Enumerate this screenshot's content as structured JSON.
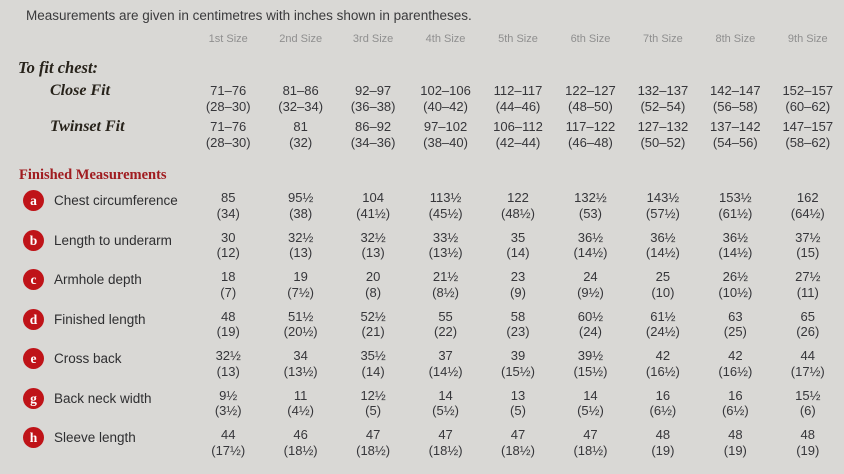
{
  "title": "Measurements are given in centimetres with inches shown in parentheses.",
  "size_headers": [
    "1st Size",
    "2nd Size",
    "3rd Size",
    "4th Size",
    "5th Size",
    "6th Size",
    "7th Size",
    "8th Size",
    "9th Size"
  ],
  "fit_section": {
    "heading": "To fit chest:",
    "rows": [
      {
        "label": "Close Fit",
        "cm": [
          "71–76",
          "81–86",
          "92–97",
          "102–106",
          "112–117",
          "122–127",
          "132–137",
          "142–147",
          "152–157"
        ],
        "inches": [
          "(28–30)",
          "(32–34)",
          "(36–38)",
          "(40–42)",
          "(44–46)",
          "(48–50)",
          "(52–54)",
          "(56–58)",
          "(60–62)"
        ]
      },
      {
        "label": "Twinset Fit",
        "cm": [
          "71–76",
          "81",
          "86–92",
          "97–102",
          "106–112",
          "117–122",
          "127–132",
          "137–142",
          "147–157"
        ],
        "inches": [
          "(28–30)",
          "(32)",
          "(34–36)",
          "(38–40)",
          "(42–44)",
          "(46–48)",
          "(50–52)",
          "(54–56)",
          "(58–62)"
        ]
      }
    ]
  },
  "measurements_section": {
    "heading": "Finished Measurements",
    "rows": [
      {
        "letter": "a",
        "label": "Chest circumference",
        "cm": [
          "85",
          "95½",
          "104",
          "113½",
          "122",
          "132½",
          "143½",
          "153½",
          "162"
        ],
        "inches": [
          "(34)",
          "(38)",
          "(41½)",
          "(45½)",
          "(48½)",
          "(53)",
          "(57½)",
          "(61½)",
          "(64½)"
        ]
      },
      {
        "letter": "b",
        "label": "Length to underarm",
        "cm": [
          "30",
          "32½",
          "32½",
          "33½",
          "35",
          "36½",
          "36½",
          "36½",
          "37½"
        ],
        "inches": [
          "(12)",
          "(13)",
          "(13)",
          "(13½)",
          "(14)",
          "(14½)",
          "(14½)",
          "(14½)",
          "(15)"
        ]
      },
      {
        "letter": "c",
        "label": "Armhole depth",
        "cm": [
          "18",
          "19",
          "20",
          "21½",
          "23",
          "24",
          "25",
          "26½",
          "27½"
        ],
        "inches": [
          "(7)",
          "(7½)",
          "(8)",
          "(8½)",
          "(9)",
          "(9½)",
          "(10)",
          "(10½)",
          "(11)"
        ]
      },
      {
        "letter": "d",
        "label": "Finished length",
        "cm": [
          "48",
          "51½",
          "52½",
          "55",
          "58",
          "60½",
          "61½",
          "63",
          "65"
        ],
        "inches": [
          "(19)",
          "(20½)",
          "(21)",
          "(22)",
          "(23)",
          "(24)",
          "(24½)",
          "(25)",
          "(26)"
        ]
      },
      {
        "letter": "e",
        "label": "Cross back",
        "cm": [
          "32½",
          "34",
          "35½",
          "37",
          "39",
          "39½",
          "42",
          "42",
          "44"
        ],
        "inches": [
          "(13)",
          "(13½)",
          "(14)",
          "(14½)",
          "(15½)",
          "(15½)",
          "(16½)",
          "(16½)",
          "(17½)"
        ]
      },
      {
        "letter": "g",
        "label": "Back neck width",
        "cm": [
          "9½",
          "11",
          "12½",
          "14",
          "13",
          "14",
          "16",
          "16",
          "15½"
        ],
        "inches": [
          "(3½)",
          "(4½)",
          "(5)",
          "(5½)",
          "(5)",
          "(5½)",
          "(6½)",
          "(6½)",
          "(6)"
        ]
      },
      {
        "letter": "h",
        "label": "Sleeve length",
        "cm": [
          "44",
          "46",
          "47",
          "47",
          "47",
          "47",
          "48",
          "48",
          "48"
        ],
        "inches": [
          "(17½)",
          "(18½)",
          "(18½)",
          "(18½)",
          "(18½)",
          "(18½)",
          "(19)",
          "(19)",
          "(19)"
        ]
      }
    ]
  },
  "colors": {
    "background": "#d9d8d5",
    "text": "#36363a",
    "muted_header": "#8f8f8f",
    "section_red": "#a01c20",
    "badge_red": "#bf1318",
    "badge_text": "#ffffff"
  }
}
